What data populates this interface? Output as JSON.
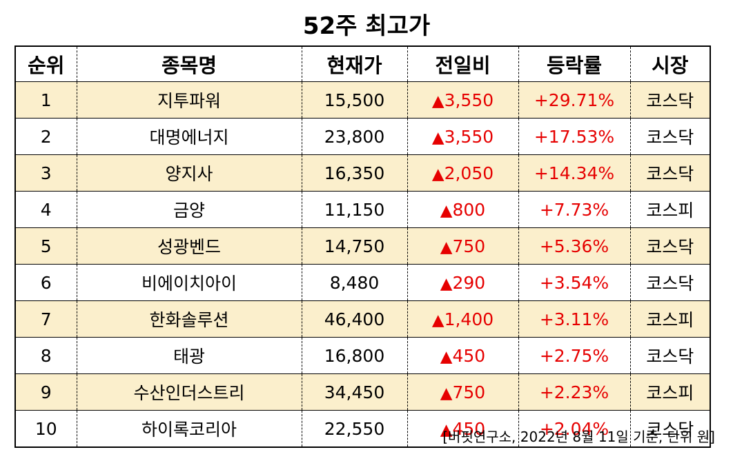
{
  "title": "52주 최고가",
  "headers": [
    "순위",
    "종목명",
    "현재가",
    "전일비",
    "등락률",
    "시장"
  ],
  "rows": [
    {
      "rank": "1",
      "name": "지투파워",
      "price": "15,500",
      "change": "3,550",
      "rate": "+29.71%",
      "market": "코스닥"
    },
    {
      "rank": "2",
      "name": "대명에너지",
      "price": "23,800",
      "change": "3,550",
      "rate": "+17.53%",
      "market": "코스닥"
    },
    {
      "rank": "3",
      "name": "양지사",
      "price": "16,350",
      "change": "2,050",
      "rate": "+14.34%",
      "market": "코스닥"
    },
    {
      "rank": "4",
      "name": "금양",
      "price": "11,150",
      "change": "800",
      "rate": "+7.73%",
      "market": "코스피"
    },
    {
      "rank": "5",
      "name": "성광벤드",
      "price": "14,750",
      "change": "750",
      "rate": "+5.36%",
      "market": "코스닥"
    },
    {
      "rank": "6",
      "name": "비에이치아이",
      "price": "8,480",
      "change": "290",
      "rate": "+3.54%",
      "market": "코스닥"
    },
    {
      "rank": "7",
      "name": "한화솔루션",
      "price": "46,400",
      "change": "1,400",
      "rate": "+3.11%",
      "market": "코스피"
    },
    {
      "rank": "8",
      "name": "태광",
      "price": "16,800",
      "change": "450",
      "rate": "+2.75%",
      "market": "코스닥"
    },
    {
      "rank": "9",
      "name": "수산인더스트리",
      "price": "34,450",
      "change": "750",
      "rate": "+2.23%",
      "market": "코스피"
    },
    {
      "rank": "10",
      "name": "하이록코리아",
      "price": "22,550",
      "change": "450",
      "rate": "+2.04%",
      "market": "코스닥"
    }
  ],
  "up_symbol": "▲",
  "footer": "[버핏연구소, 2022년 8월 11일 기준, 단위 원]",
  "colors": {
    "highlight_row": "#fbefcc",
    "up_red": "#e60000"
  },
  "highlighted_rows": [
    1,
    3,
    5,
    7,
    9
  ]
}
